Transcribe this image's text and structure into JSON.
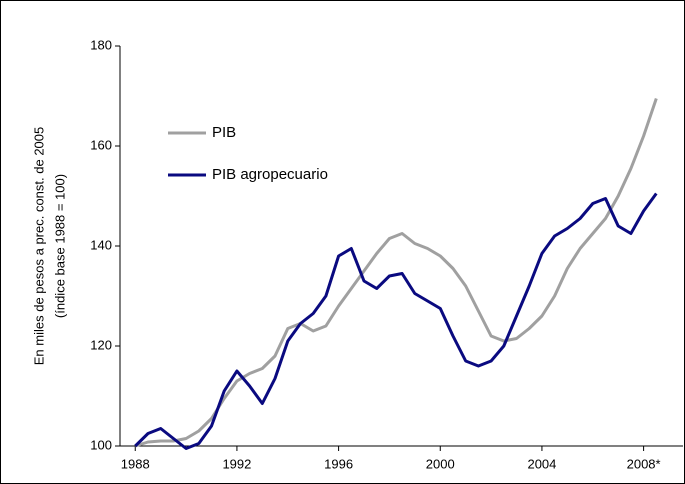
{
  "chart_data": {
    "type": "line",
    "ylabel": [
      "En miles de pesos a prec. const. de 2005",
      "(índice base 1988 = 100)"
    ],
    "x": [
      1988,
      1988.5,
      1989,
      1989.5,
      1990,
      1990.5,
      1991,
      1991.5,
      1992,
      1992.5,
      1993,
      1993.5,
      1994,
      1994.5,
      1995,
      1995.5,
      1996,
      1996.5,
      1997,
      1997.5,
      1998,
      1998.5,
      1999,
      1999.5,
      2000,
      2000.5,
      2001,
      2001.5,
      2002,
      2002.5,
      2003,
      2003.5,
      2004,
      2004.5,
      2005,
      2005.5,
      2006,
      2006.5,
      2007,
      2007.5,
      2008,
      2008.5
    ],
    "series": [
      {
        "name": "PIB",
        "color": "#a0a0a0",
        "values": [
          100,
          100.8,
          101,
          101,
          101.5,
          103,
          105.5,
          109.5,
          113,
          114.5,
          115.5,
          118,
          123.5,
          124.5,
          123,
          124,
          128,
          131.5,
          135,
          138.5,
          141.5,
          142.5,
          140.5,
          139.5,
          138,
          135.5,
          132,
          127,
          122,
          121,
          121.5,
          123.5,
          126,
          130,
          135.5,
          139.5,
          142.5,
          145.5,
          150,
          155.5,
          162,
          169.5
        ]
      },
      {
        "name": "PIB agropecuario",
        "color": "#0a0a80",
        "values": [
          100,
          102.5,
          103.5,
          101.5,
          99.5,
          100.5,
          104,
          111,
          115,
          112,
          108.5,
          113.5,
          121,
          124.5,
          126.5,
          130,
          138,
          139.5,
          133,
          131.5,
          134,
          134.5,
          130.5,
          129,
          127.5,
          122,
          117,
          116,
          117,
          120,
          126,
          132,
          138.5,
          142,
          143.5,
          145.5,
          148.5,
          149.5,
          144,
          142.5,
          147,
          150.5
        ]
      }
    ],
    "xlim": [
      1987.4,
      2009.55
    ],
    "xticks": [
      1988,
      1992,
      1996,
      2000,
      2004,
      {
        "value": 2008,
        "label": "2008*"
      }
    ],
    "ylim": [
      100,
      180
    ],
    "yticks": [
      100,
      120,
      140,
      160,
      180
    ],
    "legend": "upper-left"
  }
}
